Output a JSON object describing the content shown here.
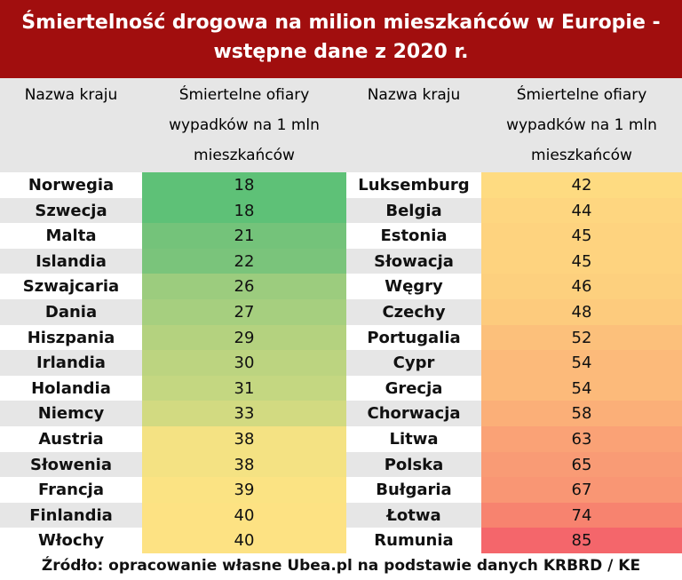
{
  "title_line1": "Śmiertelność drogowa na milion mieszkańców w Europie -",
  "title_line2": "wstępne dane z 2020 r.",
  "columns": {
    "country": "Nazwa kraju",
    "value_line1": "Śmiertelne ofiary",
    "value_line2": "wypadków na 1 mln",
    "value_line3": "mieszkańców"
  },
  "source": "Źródło: opracowanie własne Ubea.pl na podstawie danych KRBRD / KE",
  "chart_data": {
    "type": "table",
    "title": "Śmiertelność drogowa na milion mieszkańców w Europie - wstępne dane z 2020 r.",
    "headers": [
      "Nazwa kraju",
      "Śmiertelne ofiary wypadków na 1 mln mieszkańców"
    ],
    "left": [
      {
        "country": "Norwegia",
        "value": 18,
        "color": "#5ec177"
      },
      {
        "country": "Szwecja",
        "value": 18,
        "color": "#5ec177"
      },
      {
        "country": "Malta",
        "value": 21,
        "color": "#74c37a"
      },
      {
        "country": "Islandia",
        "value": 22,
        "color": "#7ac47b"
      },
      {
        "country": "Szwajcaria",
        "value": 26,
        "color": "#9ccc7e"
      },
      {
        "country": "Dania",
        "value": 27,
        "color": "#a6cf7f"
      },
      {
        "country": "Hiszpania",
        "value": 29,
        "color": "#b4d27f"
      },
      {
        "country": "Irlandia",
        "value": 30,
        "color": "#bcd480"
      },
      {
        "country": "Holandia",
        "value": 31,
        "color": "#c4d781"
      },
      {
        "country": "Niemcy",
        "value": 33,
        "color": "#d2da81"
      },
      {
        "country": "Austria",
        "value": 38,
        "color": "#f4e283"
      },
      {
        "country": "Słowenia",
        "value": 38,
        "color": "#f4e283"
      },
      {
        "country": "Francja",
        "value": 39,
        "color": "#fbe383"
      },
      {
        "country": "Finlandia",
        "value": 40,
        "color": "#fde283"
      },
      {
        "country": "Włochy",
        "value": 40,
        "color": "#fde283"
      }
    ],
    "right": [
      {
        "country": "Luksemburg",
        "value": 42,
        "color": "#fedb81"
      },
      {
        "country": "Belgia",
        "value": 44,
        "color": "#fed680"
      },
      {
        "country": "Estonia",
        "value": 45,
        "color": "#fed37f"
      },
      {
        "country": "Słowacja",
        "value": 45,
        "color": "#fed37f"
      },
      {
        "country": "Węgry",
        "value": 46,
        "color": "#fdd07e"
      },
      {
        "country": "Czechy",
        "value": 48,
        "color": "#fdcb7d"
      },
      {
        "country": "Portugalia",
        "value": 52,
        "color": "#fcc07b"
      },
      {
        "country": "Cypr",
        "value": 54,
        "color": "#fcba7a"
      },
      {
        "country": "Grecja",
        "value": 54,
        "color": "#fcba7a"
      },
      {
        "country": "Chorwacja",
        "value": 58,
        "color": "#fbaf78"
      },
      {
        "country": "Litwa",
        "value": 63,
        "color": "#faa276"
      },
      {
        "country": "Polska",
        "value": 65,
        "color": "#f99b75"
      },
      {
        "country": "Bułgaria",
        "value": 67,
        "color": "#f99674"
      },
      {
        "country": "Łotwa",
        "value": 74,
        "color": "#f7836f"
      },
      {
        "country": "Rumunia",
        "value": 85,
        "color": "#f4666b"
      }
    ]
  }
}
